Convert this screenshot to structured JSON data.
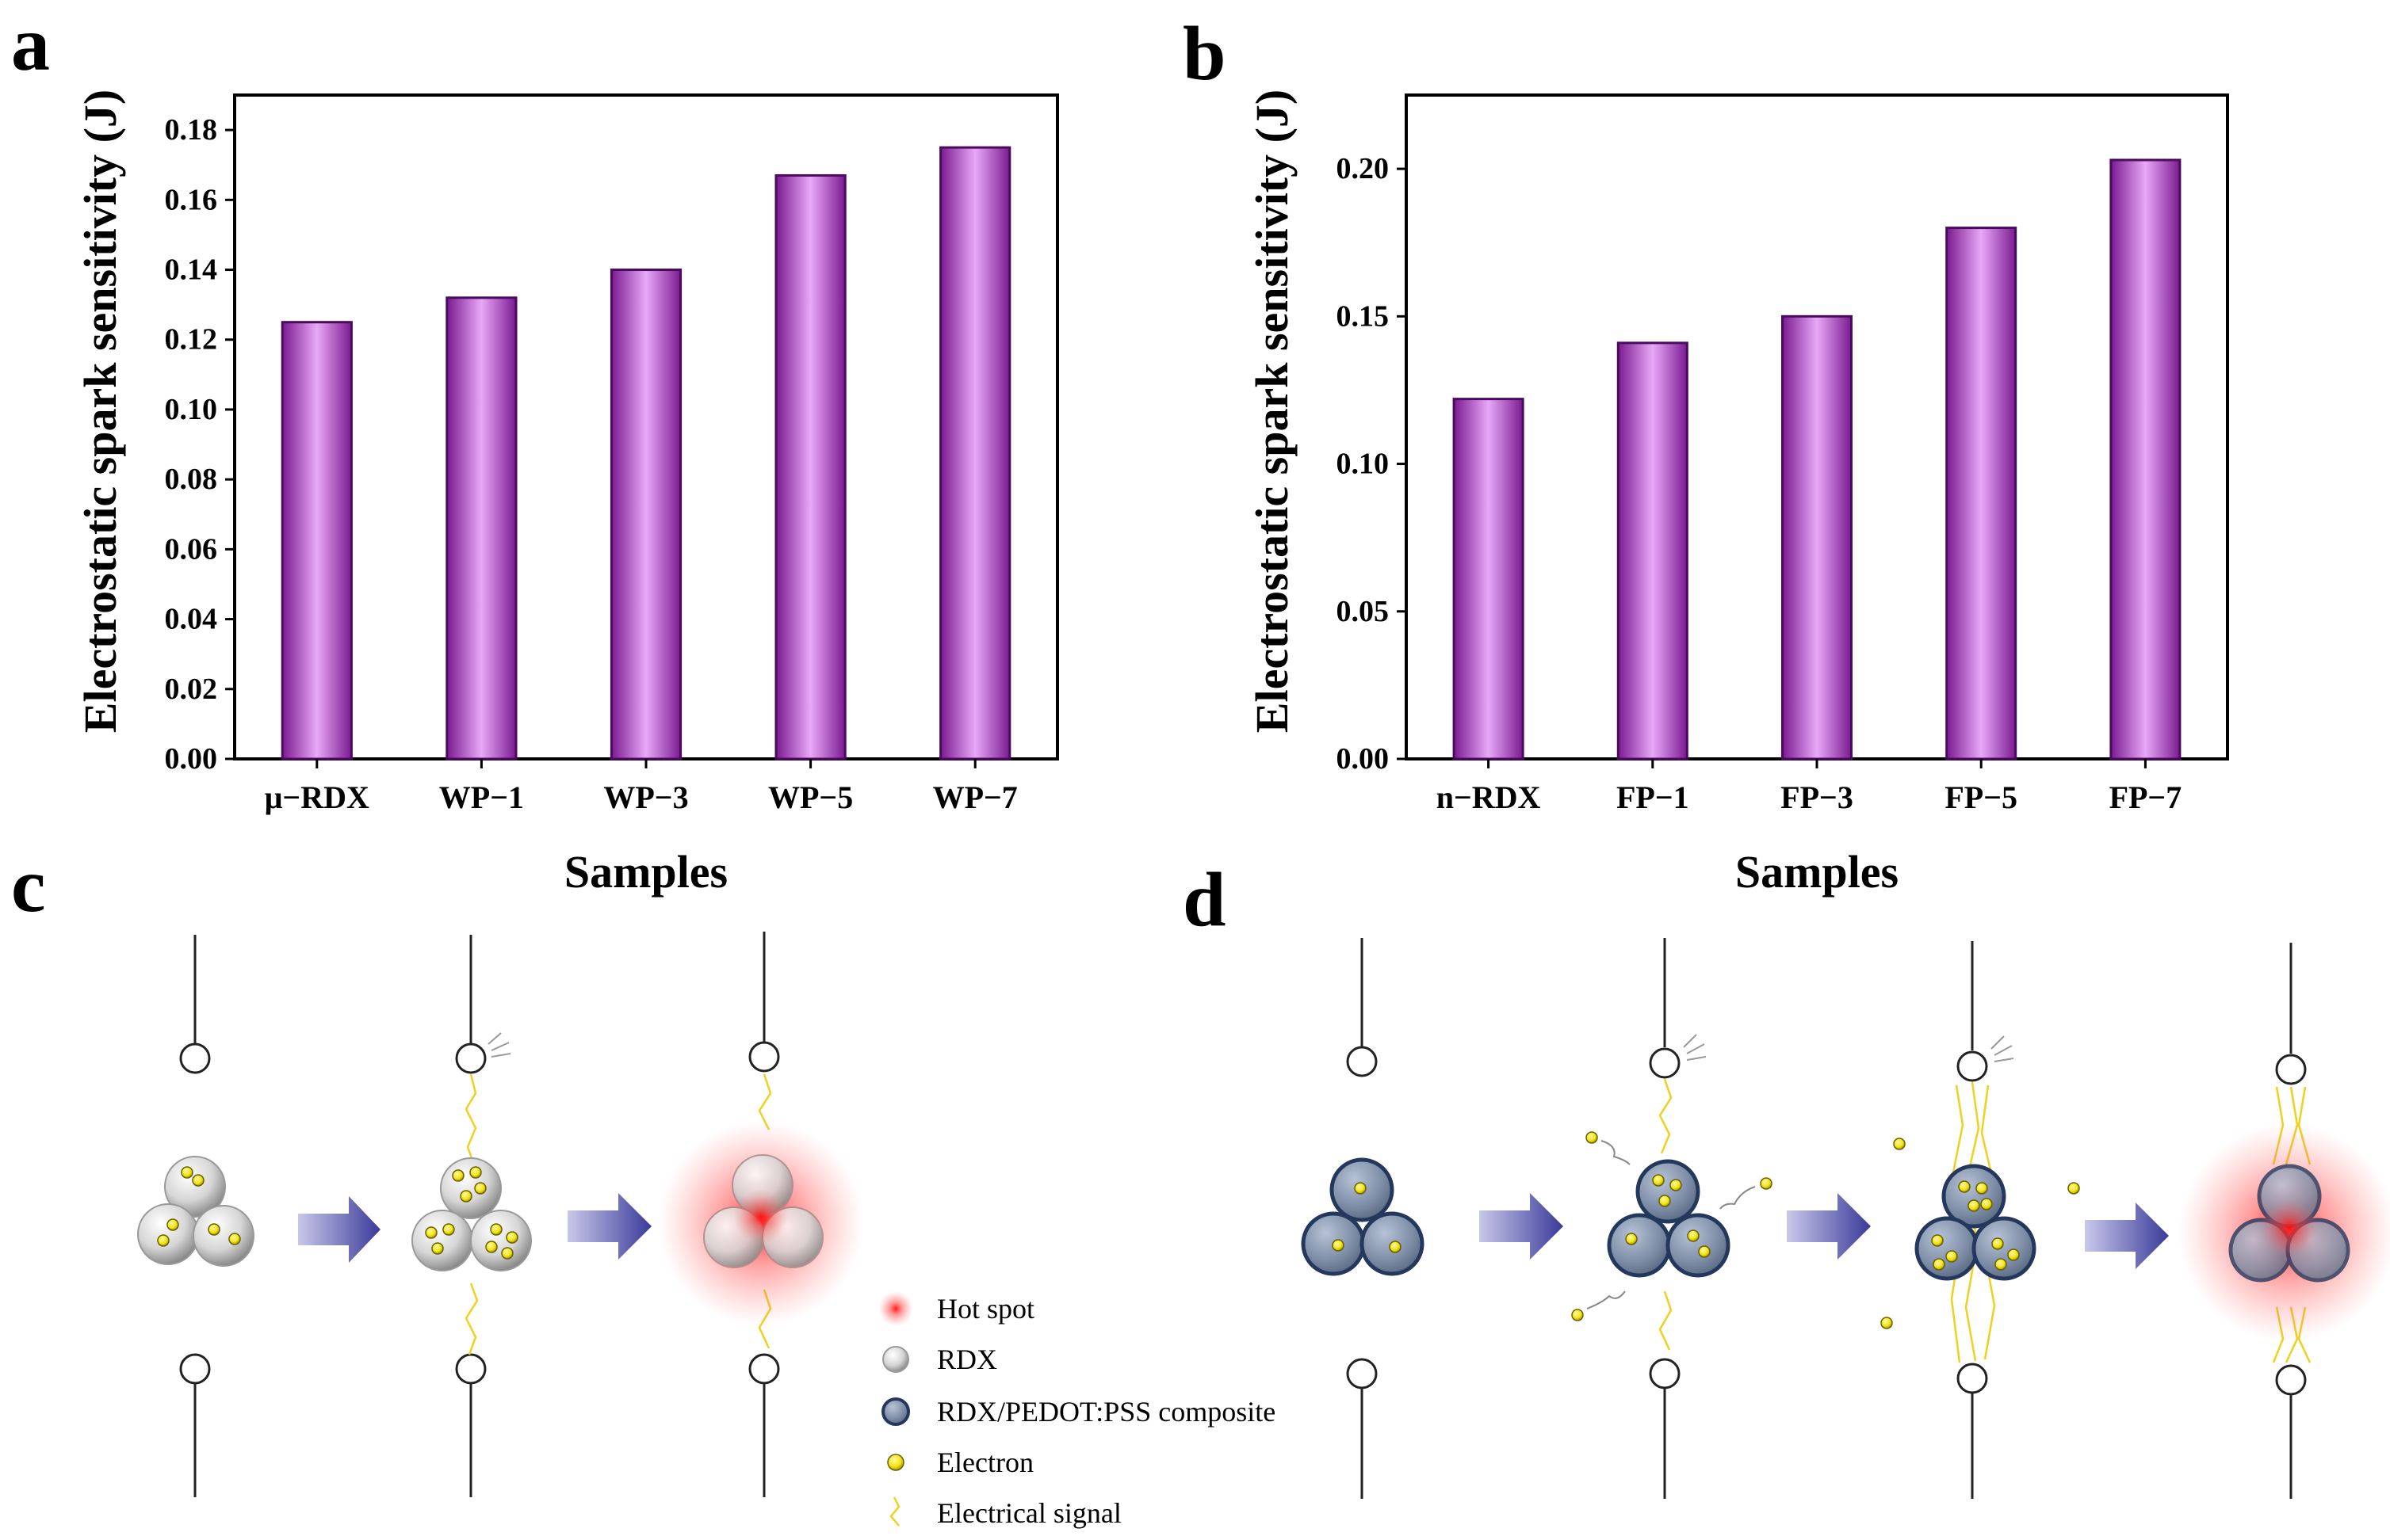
{
  "panels": {
    "a": "a",
    "b": "b",
    "c": "c",
    "d": "d"
  },
  "chart_data": [
    {
      "type": "bar",
      "title": "",
      "ylabel": "Electrostatic spark sensitivity (J)",
      "xlabel": "Samples",
      "categories": [
        "μ−RDX",
        "WP−1",
        "WP−3",
        "WP−5",
        "WP−7"
      ],
      "values": [
        0.125,
        0.132,
        0.14,
        0.167,
        0.175
      ],
      "ylim": [
        0,
        0.19
      ],
      "yticks": [
        0.0,
        0.02,
        0.04,
        0.06,
        0.08,
        0.1,
        0.12,
        0.14,
        0.16,
        0.18
      ],
      "ytick_labels": [
        "0.00",
        "0.02",
        "0.04",
        "0.06",
        "0.08",
        "0.10",
        "0.12",
        "0.14",
        "0.16",
        "0.18"
      ],
      "grid": false,
      "colors": {
        "edge": "#4a0a5e",
        "dark": "#7a1a90",
        "light": "#e8a8f8"
      }
    },
    {
      "type": "bar",
      "title": "",
      "ylabel": "Electrostatic spark sensitivity (J)",
      "xlabel": "Samples",
      "categories": [
        "n−RDX",
        "FP−1",
        "FP−3",
        "FP−5",
        "FP−7"
      ],
      "values": [
        0.122,
        0.141,
        0.15,
        0.18,
        0.203
      ],
      "ylim": [
        0,
        0.225
      ],
      "yticks": [
        0.0,
        0.05,
        0.1,
        0.15,
        0.2
      ],
      "ytick_labels": [
        "0.00",
        "0.05",
        "0.10",
        "0.15",
        "0.20"
      ],
      "grid": false,
      "colors": {
        "edge": "#4a0a5e",
        "dark": "#7a1a90",
        "light": "#e8a8f8"
      }
    }
  ],
  "legend": {
    "items": [
      "Hot spot",
      "RDX",
      "RDX/PEDOT:PSS composite",
      "Electron",
      "Electrical signal"
    ]
  },
  "colors": {
    "rdx": "#e4e4e4",
    "composite": "#7f8fa8",
    "composite_edge": "#24385e",
    "electron": "#f2e416",
    "hotspot": "#ff2020",
    "arrow": "#3a3a9a",
    "signal": "#f0d020"
  }
}
